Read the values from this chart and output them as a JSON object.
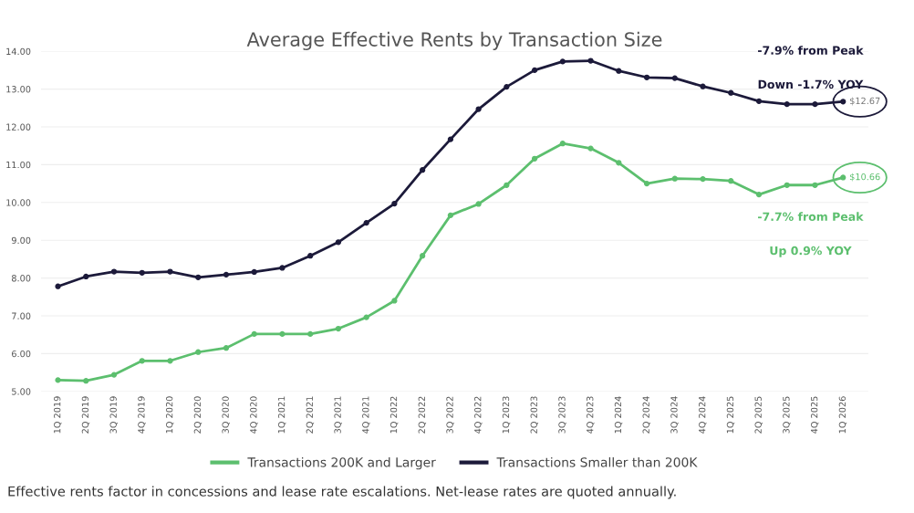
{
  "chart_data": {
    "type": "line",
    "title": "Average Effective Rents by Transaction Size",
    "categories": [
      "1Q 2019",
      "2Q 2019",
      "3Q 2019",
      "4Q 2019",
      "1Q 2020",
      "2Q 2020",
      "3Q 2020",
      "4Q 2020",
      "1Q 2021",
      "2Q 2021",
      "3Q 2021",
      "4Q 2021",
      "1Q 2022",
      "2Q 2022",
      "3Q 2022",
      "4Q 2022",
      "1Q 2023",
      "2Q 2023",
      "3Q 2023",
      "4Q 2023",
      "1Q 2024",
      "2Q 2024",
      "3Q 2024",
      "4Q 2024",
      "1Q 2025",
      "2Q 2025",
      "3Q 2025",
      "4Q 2025",
      "1Q 2026"
    ],
    "series": [
      {
        "name": "Transactions 200K and Larger",
        "color": "#5cbf6e",
        "values": [
          5.3,
          5.28,
          5.44,
          5.81,
          5.81,
          6.04,
          6.15,
          6.52,
          6.52,
          6.52,
          6.66,
          6.96,
          7.4,
          8.59,
          9.66,
          9.96,
          10.46,
          11.16,
          11.56,
          11.43,
          11.05,
          10.5,
          10.63,
          10.62,
          10.57,
          10.21,
          10.46,
          10.46,
          10.66
        ]
      },
      {
        "name": "Transactions Smaller than 200K",
        "color": "#1c1a3a",
        "values": [
          7.78,
          8.04,
          8.17,
          8.14,
          8.17,
          8.02,
          8.09,
          8.16,
          8.27,
          8.59,
          8.95,
          9.46,
          9.97,
          10.86,
          11.67,
          12.47,
          13.06,
          13.5,
          13.73,
          13.75,
          13.48,
          13.31,
          13.29,
          13.07,
          12.9,
          12.68,
          12.6,
          12.6,
          12.67
        ]
      }
    ],
    "ylim": [
      5,
      14
    ],
    "yticks": [
      {
        "value": 5,
        "label": "5.00"
      },
      {
        "value": 6,
        "label": "6.00"
      },
      {
        "value": 7,
        "label": "7.00"
      },
      {
        "value": 8,
        "label": "8.00"
      },
      {
        "value": 9,
        "label": "9.00"
      },
      {
        "value": 10,
        "label": "10.00"
      },
      {
        "value": 11,
        "label": "11.00"
      },
      {
        "value": 12,
        "label": "12.00"
      },
      {
        "value": 13,
        "label": "13.00"
      },
      {
        "value": 14,
        "label": "14.00"
      }
    ],
    "grid": "y",
    "legend": "bottom",
    "marker": "circle",
    "line_style": "solid",
    "annotations": [
      {
        "text": "$12.67",
        "x": "1Q 2026",
        "y": 12.67
      },
      {
        "text": "$10.66",
        "x": "1Q 2026",
        "y": 10.66
      },
      "-7.9% from Peak",
      "Down -1.7% YOY",
      "-7.7% from Peak",
      "Up 0.9% YOY",
      "Effective rents factor in concessions and lease rate escalations. Net-lease rates are quoted annually."
    ]
  }
}
